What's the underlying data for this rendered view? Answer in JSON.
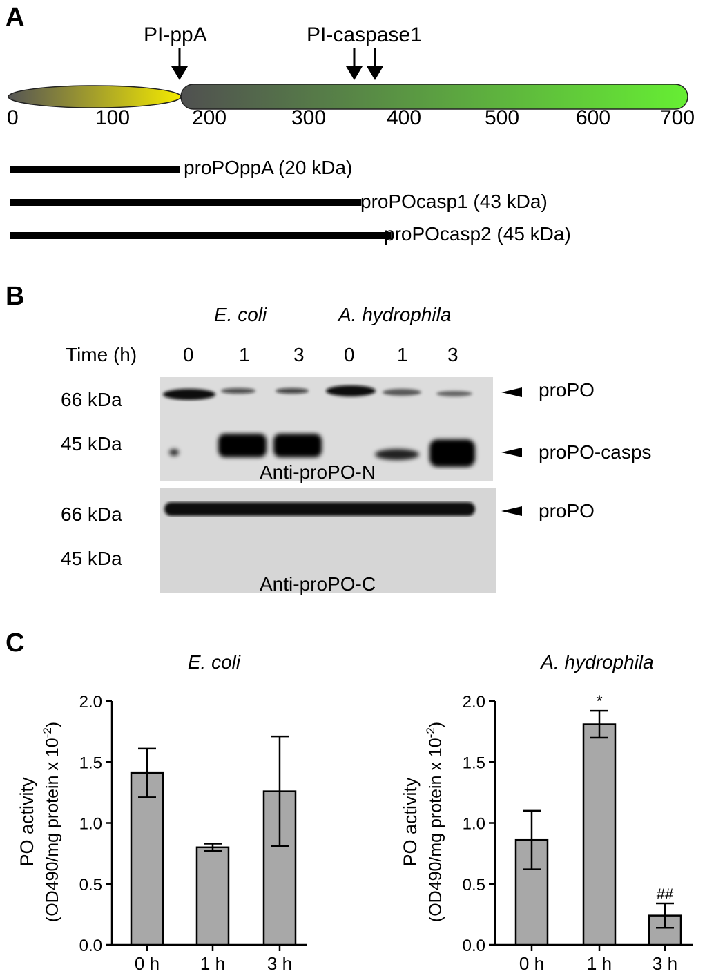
{
  "panel_a": {
    "label": "A",
    "arrow_labels": [
      "PI-ppA",
      "PI-caspase1"
    ],
    "scale_ticks": [
      "0",
      "100",
      "200",
      "300",
      "400",
      "500",
      "600",
      "700"
    ],
    "fragments": [
      {
        "label": "proPOppA (20 kDa)",
        "end": 170
      },
      {
        "label": "proPOcasp1 (43 kDa)",
        "end": 352
      },
      {
        "label": "proPOcasp2 (45 kDa)",
        "end": 382
      }
    ]
  },
  "panel_b": {
    "label": "B",
    "group_labels": [
      "E. coli",
      "A. hydrophila"
    ],
    "time_label": "Time (h)",
    "time_points": [
      "0",
      "1",
      "3",
      "0",
      "1",
      "3"
    ],
    "blot_n": {
      "markers": [
        "66 kDa",
        "45 kDa"
      ],
      "band_labels": [
        "proPO",
        "proPO-casps"
      ],
      "antibody": "Anti-proPO-N"
    },
    "blot_c": {
      "markers": [
        "66 kDa",
        "45 kDa"
      ],
      "band_labels": [
        "proPO"
      ],
      "antibody": "Anti-proPO-C"
    }
  },
  "panel_c": {
    "label": "C",
    "chart_data": [
      {
        "type": "bar",
        "title": "E. coli",
        "ylabel": "PO activity",
        "ylabel2": "(OD490/mg protein x 10",
        "ylabel_sup": "-2",
        "ylabel_end": ")",
        "categories": [
          "0 h",
          "1 h",
          "3 h"
        ],
        "values": [
          1.41,
          0.8,
          1.26
        ],
        "errors": [
          0.2,
          0.03,
          0.45
        ],
        "annotations": [
          "",
          "",
          ""
        ],
        "ylim": [
          0.0,
          2.0
        ],
        "yticks": [
          "0.0",
          "0.5",
          "1.0",
          "1.5",
          "2.0"
        ],
        "bar_color": "#a8a8a8"
      },
      {
        "type": "bar",
        "title": "A. hydrophila",
        "ylabel": "PO activity",
        "ylabel2": "(OD490/mg protein x 10",
        "ylabel_sup": "-2",
        "ylabel_end": ")",
        "categories": [
          "0 h",
          "1 h",
          "3 h"
        ],
        "values": [
          0.86,
          1.81,
          0.24
        ],
        "errors": [
          0.24,
          0.11,
          0.1
        ],
        "annotations": [
          "",
          "*",
          "##"
        ],
        "ylim": [
          0.0,
          2.0
        ],
        "yticks": [
          "0.0",
          "0.5",
          "1.0",
          "1.5",
          "2.0"
        ],
        "bar_color": "#a8a8a8"
      }
    ]
  }
}
